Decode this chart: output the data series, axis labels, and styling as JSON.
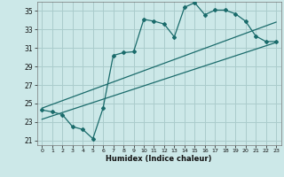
{
  "xlabel": "Humidex (Indice chaleur)",
  "background_color": "#cce8e8",
  "grid_color": "#aacccc",
  "line_color": "#1a6b6b",
  "xlim": [
    -0.5,
    23.5
  ],
  "ylim": [
    20.5,
    36.0
  ],
  "xticks": [
    0,
    1,
    2,
    3,
    4,
    5,
    6,
    7,
    8,
    9,
    10,
    11,
    12,
    13,
    14,
    15,
    16,
    17,
    18,
    19,
    20,
    21,
    22,
    23
  ],
  "yticks": [
    21,
    23,
    25,
    27,
    29,
    31,
    33,
    35
  ],
  "series1_x": [
    0,
    1,
    2,
    3,
    4,
    5,
    6,
    7,
    8,
    9,
    10,
    11,
    12,
    13,
    14,
    15,
    16,
    17,
    18,
    19,
    20,
    21,
    22,
    23
  ],
  "series1_y": [
    24.3,
    24.1,
    23.8,
    22.5,
    22.2,
    21.2,
    24.5,
    30.2,
    30.5,
    30.6,
    34.1,
    33.9,
    33.6,
    32.2,
    35.4,
    35.9,
    34.6,
    35.1,
    35.1,
    34.7,
    33.9,
    32.3,
    31.7,
    31.7
  ],
  "series2_x": [
    0,
    23
  ],
  "series2_y": [
    24.5,
    33.8
  ],
  "series3_x": [
    0,
    23
  ],
  "series3_y": [
    23.3,
    31.6
  ]
}
